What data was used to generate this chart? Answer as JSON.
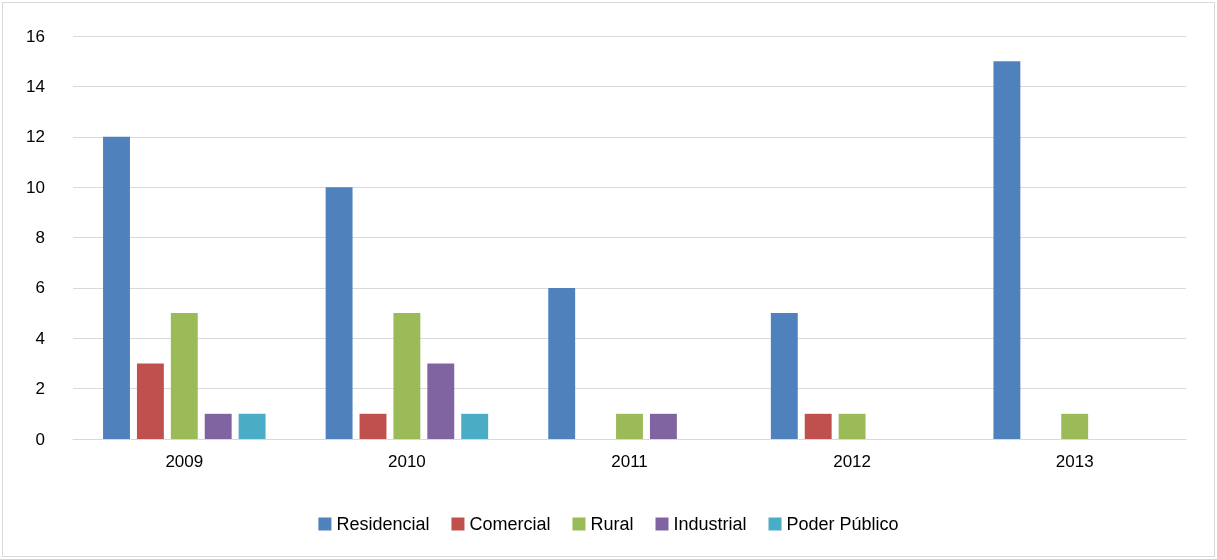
{
  "chart_data": {
    "type": "bar",
    "categories": [
      "2009",
      "2010",
      "2011",
      "2012",
      "2013"
    ],
    "series": [
      {
        "name": "Residencial",
        "color": "#4f81bd",
        "values": [
          12,
          10,
          6,
          5,
          15
        ]
      },
      {
        "name": "Comercial",
        "color": "#c0504d",
        "values": [
          3,
          1,
          0,
          1,
          0
        ]
      },
      {
        "name": "Rural",
        "color": "#9bbb59",
        "values": [
          5,
          5,
          1,
          1,
          1
        ]
      },
      {
        "name": "Industrial",
        "color": "#8064a2",
        "values": [
          1,
          3,
          1,
          0,
          0
        ]
      },
      {
        "name": "Poder Público",
        "color": "#4bacc6",
        "values": [
          1,
          1,
          0,
          0,
          0
        ]
      }
    ],
    "ylim": [
      0,
      16
    ],
    "yticks": [
      0,
      2,
      4,
      6,
      8,
      10,
      12,
      14,
      16
    ],
    "grid": "y",
    "legend": "bottom"
  }
}
